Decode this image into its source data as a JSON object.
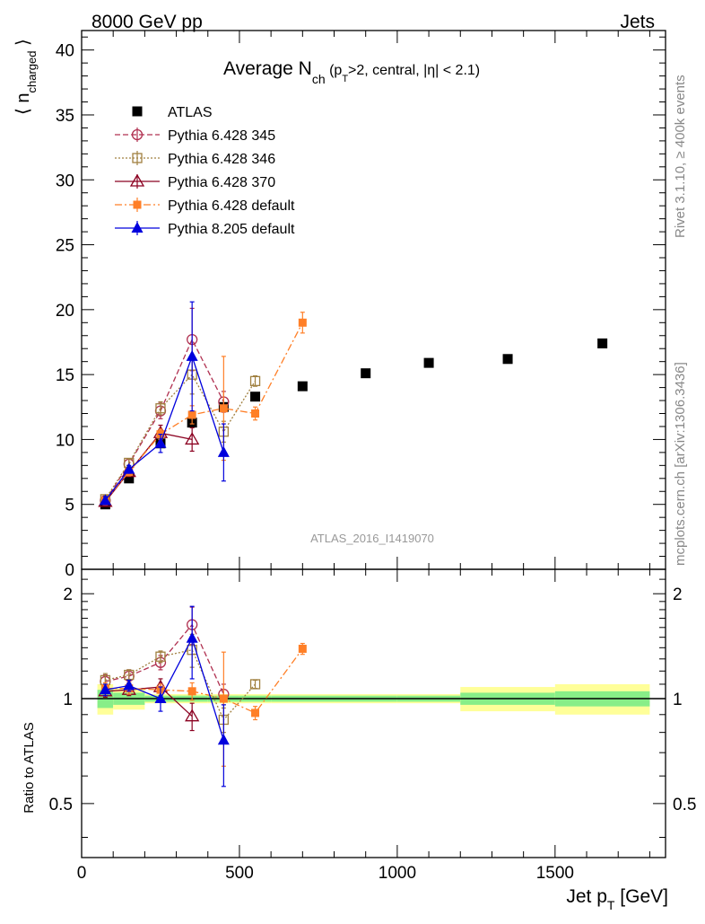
{
  "header": {
    "left": "8000 GeV pp",
    "right": "Jets"
  },
  "side": {
    "rivet": "Rivet 3.1.10, ≥ 400k events",
    "mcplots": "mcplots.cern.ch [arXiv:1306.3436]"
  },
  "watermark": "ATLAS_2016_I1419070",
  "chart_data": [
    {
      "type": "scatter",
      "title_parts": {
        "main": "Average N",
        "sub_ch": "ch",
        "p_open": " (p",
        "sub_T": "T",
        "rest": ">2, central, |η| < 2.1)"
      },
      "ylabel_parts": {
        "open": "⟨ n",
        "sub": "charged",
        "close": " ⟩"
      },
      "xlabel_parts": {
        "main": "Jet p",
        "sub": "T",
        "unit": " [GeV]"
      },
      "xlim": [
        0,
        1850
      ],
      "ylim": [
        0,
        41.5
      ],
      "x_ticks": [
        0,
        500,
        1000,
        1500
      ],
      "x_tick_labels": [
        "0",
        "500",
        "1000",
        "1500"
      ],
      "y_ticks": [
        0,
        5,
        10,
        15,
        20,
        25,
        30,
        35,
        40
      ],
      "y_tick_labels": [
        "0",
        "5",
        "10",
        "15",
        "20",
        "25",
        "30",
        "35",
        "40"
      ],
      "legend_position": "top-left",
      "series": [
        {
          "name": "ATLAS",
          "color": "#000000",
          "marker": "square-filled",
          "line": "none",
          "x": [
            75,
            150,
            250,
            350,
            450,
            550,
            700,
            900,
            1100,
            1350,
            1650
          ],
          "y": [
            5.0,
            7.0,
            9.7,
            11.3,
            12.5,
            13.3,
            14.1,
            15.1,
            15.9,
            16.2,
            17.4
          ],
          "err": [
            0.2,
            0.2,
            0.2,
            0.3,
            0.3,
            0.3,
            0.3,
            0.3,
            0.3,
            0.3,
            0.3
          ]
        },
        {
          "name": "Pythia 6.428 345",
          "color": "#b03050",
          "marker": "circle-open",
          "line": "dashed",
          "x": [
            75,
            150,
            250,
            350,
            450
          ],
          "y": [
            5.3,
            8.1,
            12.2,
            17.7,
            12.9
          ],
          "err": [
            0.3,
            0.4,
            0.6,
            2.4,
            0.8
          ]
        },
        {
          "name": "Pythia 6.428 346",
          "color": "#a08040",
          "marker": "square-open",
          "line": "dotted",
          "x": [
            75,
            150,
            250,
            350,
            450,
            550
          ],
          "y": [
            5.4,
            8.2,
            12.4,
            15.0,
            10.6,
            14.5
          ],
          "err": [
            0.3,
            0.3,
            0.5,
            1.5,
            0.8,
            0.4
          ]
        },
        {
          "name": "Pythia 6.428 370",
          "color": "#8b0020",
          "marker": "triangle-open",
          "line": "solid",
          "x": [
            75,
            150,
            250,
            350
          ],
          "y": [
            5.2,
            7.5,
            10.5,
            10.0
          ],
          "err": [
            0.2,
            0.3,
            0.6,
            0.9
          ]
        },
        {
          "name": "Pythia 6.428 default",
          "color": "#ff7f27",
          "marker": "square-filled-small",
          "line": "dashdot",
          "x": [
            75,
            150,
            250,
            350,
            450,
            550,
            700
          ],
          "y": [
            5.3,
            7.5,
            10.4,
            11.9,
            12.4,
            12.0,
            19.0
          ],
          "err": [
            0.3,
            0.3,
            0.4,
            0.7,
            4.0,
            0.5,
            0.8
          ]
        },
        {
          "name": "Pythia 8.205 default",
          "color": "#0000dd",
          "marker": "triangle-filled",
          "line": "solid",
          "x": [
            75,
            150,
            250,
            350,
            450
          ],
          "y": [
            5.3,
            7.7,
            9.7,
            16.4,
            9.0
          ],
          "err": [
            0.3,
            0.3,
            0.7,
            4.2,
            2.2
          ]
        }
      ]
    },
    {
      "type": "scatter",
      "ylabel": "Ratio to ATLAS",
      "xlim": [
        0,
        1850
      ],
      "ylim": [
        0.35,
        2.35
      ],
      "y_ticks": [
        0.5,
        1,
        2
      ],
      "y_tick_labels": [
        "0.5",
        "1",
        "2"
      ],
      "band_edges": [
        50,
        100,
        200,
        300,
        400,
        500,
        600,
        800,
        1000,
        1200,
        1500,
        1800
      ],
      "band_inner": [
        0.06,
        0.04,
        0.02,
        0.02,
        0.02,
        0.02,
        0.02,
        0.02,
        0.02,
        0.04,
        0.05
      ],
      "band_outer": [
        0.1,
        0.07,
        0.03,
        0.03,
        0.03,
        0.03,
        0.03,
        0.03,
        0.03,
        0.08,
        0.1
      ],
      "series": [
        {
          "name": "Pythia 6.428 345",
          "x": [
            75,
            150,
            250,
            350,
            450
          ],
          "y": [
            1.12,
            1.16,
            1.27,
            1.63,
            1.03
          ],
          "err": [
            0.05,
            0.05,
            0.06,
            0.2,
            0.07
          ]
        },
        {
          "name": "Pythia 6.428 346",
          "x": [
            75,
            150,
            250,
            350,
            450,
            550
          ],
          "y": [
            1.13,
            1.17,
            1.32,
            1.38,
            0.87,
            1.1
          ],
          "err": [
            0.05,
            0.04,
            0.05,
            0.15,
            0.07,
            0.03
          ]
        },
        {
          "name": "Pythia 6.428 370",
          "x": [
            75,
            150,
            250,
            350
          ],
          "y": [
            1.05,
            1.06,
            1.08,
            0.89
          ],
          "err": [
            0.04,
            0.04,
            0.06,
            0.08
          ]
        },
        {
          "name": "Pythia 6.428 default",
          "x": [
            75,
            150,
            250,
            350,
            450,
            550,
            700
          ],
          "y": [
            1.07,
            1.07,
            1.06,
            1.05,
            1.0,
            0.91,
            1.39
          ],
          "err": [
            0.04,
            0.04,
            0.04,
            0.06,
            0.36,
            0.04,
            0.05
          ]
        },
        {
          "name": "Pythia 8.205 default",
          "x": [
            75,
            150,
            250,
            350,
            450
          ],
          "y": [
            1.06,
            1.09,
            1.0,
            1.49,
            0.76
          ],
          "err": [
            0.04,
            0.04,
            0.08,
            0.35,
            0.2
          ]
        }
      ]
    }
  ]
}
